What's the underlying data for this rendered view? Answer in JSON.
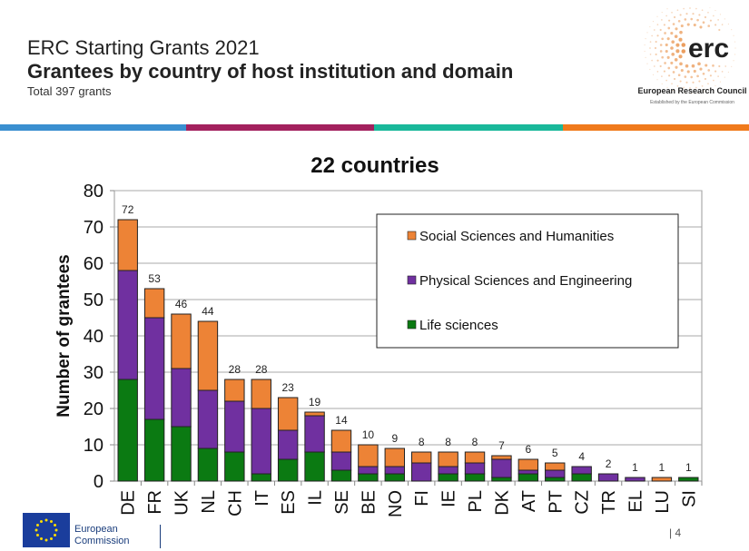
{
  "header": {
    "title": "ERC Starting Grants 2021",
    "subtitle": "Grantees by country of host institution and domain",
    "note": "Total 397 grants"
  },
  "logo": {
    "text": "erc",
    "name": "European Research Council",
    "tagline": "Established by the European Commission"
  },
  "stripe_colors": [
    "#3a8fd0",
    "#a3215e",
    "#19b89a",
    "#f07a1c"
  ],
  "footer": {
    "org_line1": "European",
    "org_line2": "Commission",
    "page": "4"
  },
  "chart_data": {
    "type": "bar",
    "stacked": true,
    "title": "22 countries",
    "xlabel": "",
    "ylabel": "Number of grantees",
    "ylim": [
      0,
      80
    ],
    "yticks": [
      0,
      10,
      20,
      30,
      40,
      50,
      60,
      70,
      80
    ],
    "grid": true,
    "legend_position": "top-right",
    "categories": [
      "DE",
      "FR",
      "UK",
      "NL",
      "CH",
      "IT",
      "ES",
      "IL",
      "SE",
      "BE",
      "NO",
      "FI",
      "IE",
      "PL",
      "DK",
      "AT",
      "PT",
      "CZ",
      "TR",
      "EL",
      "LU",
      "SI"
    ],
    "totals": [
      72,
      53,
      46,
      44,
      28,
      28,
      23,
      19,
      14,
      10,
      9,
      8,
      8,
      8,
      7,
      6,
      5,
      4,
      2,
      1,
      1,
      1
    ],
    "series": [
      {
        "name": "Life sciences",
        "color": "#0b7a12",
        "values": [
          28,
          17,
          15,
          9,
          8,
          2,
          6,
          8,
          3,
          2,
          2,
          0,
          2,
          2,
          1,
          2,
          1,
          2,
          0,
          0,
          0,
          1
        ]
      },
      {
        "name": "Physical Sciences and Engineering",
        "color": "#7030a0",
        "values": [
          30,
          28,
          16,
          16,
          14,
          18,
          8,
          10,
          5,
          2,
          2,
          5,
          2,
          3,
          5,
          1,
          2,
          2,
          2,
          1,
          0,
          0
        ]
      },
      {
        "name": "Social Sciences and Humanities",
        "color": "#ed8336",
        "values": [
          14,
          8,
          15,
          19,
          6,
          8,
          9,
          1,
          6,
          6,
          5,
          3,
          4,
          3,
          1,
          3,
          2,
          0,
          0,
          0,
          1,
          0
        ]
      }
    ]
  }
}
